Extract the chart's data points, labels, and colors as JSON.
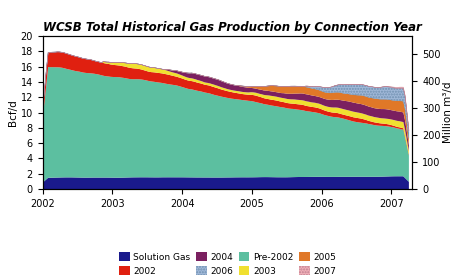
{
  "title": "WCSB Total Historical Gas Production by Connection Year",
  "ylabel_left": "Bcf/d",
  "ylabel_right": "Million m³/d",
  "xlim": [
    2002.0,
    2007.3
  ],
  "ylim_left": [
    0,
    20
  ],
  "ylim_right": [
    0,
    566
  ],
  "yticks_left": [
    0,
    2,
    4,
    6,
    8,
    10,
    12,
    14,
    16,
    18,
    20
  ],
  "yticks_right": [
    0,
    100,
    200,
    300,
    400,
    500
  ],
  "series_colors": {
    "solution_gas": "#1a1a8c",
    "pre2002": "#5cbfa0",
    "y2002": "#e02010",
    "y2003": "#f0e030",
    "y2004": "#7b2060",
    "y2005": "#e07828",
    "y2006": "#a0b8d8",
    "y2007": "#f0b0b8"
  },
  "n_points": 200,
  "t_start": 2002.0,
  "t_end": 2007.25
}
